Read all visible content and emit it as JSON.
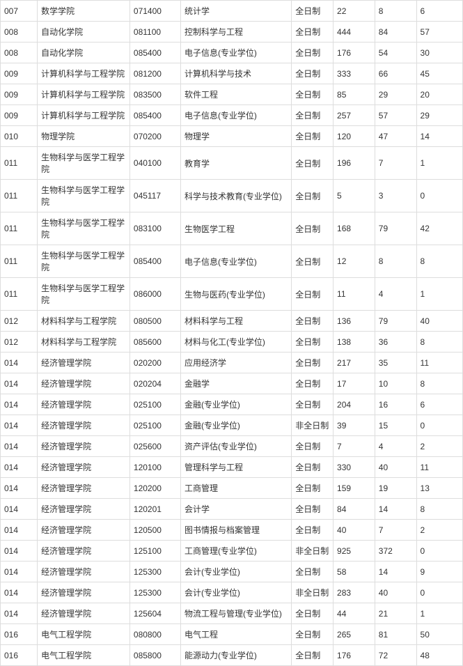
{
  "table": {
    "border_color": "#dddddd",
    "text_color": "#333333",
    "background_color": "#ffffff",
    "font_size": 12,
    "column_widths": {
      "code": "8%",
      "school": "20%",
      "major_code": "11%",
      "major": "24%",
      "mode": "9%",
      "n1": "9%",
      "n2": "9%",
      "n3": "10%"
    },
    "rows": [
      {
        "code": "007",
        "school": "数学学院",
        "major_code": "071400",
        "major": "统计学",
        "mode": "全日制",
        "n1": "22",
        "n2": "8",
        "n3": "6"
      },
      {
        "code": "008",
        "school": "自动化学院",
        "major_code": "081100",
        "major": "控制科学与工程",
        "mode": "全日制",
        "n1": "444",
        "n2": "84",
        "n3": "57"
      },
      {
        "code": "008",
        "school": "自动化学院",
        "major_code": "085400",
        "major": "电子信息(专业学位)",
        "mode": "全日制",
        "n1": "176",
        "n2": "54",
        "n3": "30"
      },
      {
        "code": "009",
        "school": "计算机科学与工程学院",
        "major_code": "081200",
        "major": "计算机科学与技术",
        "mode": "全日制",
        "n1": "333",
        "n2": "66",
        "n3": "45"
      },
      {
        "code": "009",
        "school": "计算机科学与工程学院",
        "major_code": "083500",
        "major": "软件工程",
        "mode": "全日制",
        "n1": "85",
        "n2": "29",
        "n3": "20"
      },
      {
        "code": "009",
        "school": "计算机科学与工程学院",
        "major_code": "085400",
        "major": "电子信息(专业学位)",
        "mode": "全日制",
        "n1": "257",
        "n2": "57",
        "n3": "29"
      },
      {
        "code": "010",
        "school": "物理学院",
        "major_code": "070200",
        "major": "物理学",
        "mode": "全日制",
        "n1": "120",
        "n2": "47",
        "n3": "14"
      },
      {
        "code": "011",
        "school": "生物科学与医学工程学院",
        "major_code": "040100",
        "major": "教育学",
        "mode": "全日制",
        "n1": "196",
        "n2": "7",
        "n3": "1"
      },
      {
        "code": "011",
        "school": "生物科学与医学工程学院",
        "major_code": "045117",
        "major": "科学与技术教育(专业学位)",
        "mode": "全日制",
        "n1": "5",
        "n2": "3",
        "n3": "0"
      },
      {
        "code": "011",
        "school": "生物科学与医学工程学院",
        "major_code": "083100",
        "major": "生物医学工程",
        "mode": "全日制",
        "n1": "168",
        "n2": "79",
        "n3": "42"
      },
      {
        "code": "011",
        "school": "生物科学与医学工程学院",
        "major_code": "085400",
        "major": "电子信息(专业学位)",
        "mode": "全日制",
        "n1": "12",
        "n2": "8",
        "n3": "8"
      },
      {
        "code": "011",
        "school": "生物科学与医学工程学院",
        "major_code": "086000",
        "major": "生物与医药(专业学位)",
        "mode": "全日制",
        "n1": "11",
        "n2": "4",
        "n3": "1"
      },
      {
        "code": "012",
        "school": "材料科学与工程学院",
        "major_code": "080500",
        "major": "材料科学与工程",
        "mode": "全日制",
        "n1": "136",
        "n2": "79",
        "n3": "40"
      },
      {
        "code": "012",
        "school": "材料科学与工程学院",
        "major_code": "085600",
        "major": "材料与化工(专业学位)",
        "mode": "全日制",
        "n1": "138",
        "n2": "36",
        "n3": "8"
      },
      {
        "code": "014",
        "school": "经济管理学院",
        "major_code": "020200",
        "major": "应用经济学",
        "mode": "全日制",
        "n1": "217",
        "n2": "35",
        "n3": "11"
      },
      {
        "code": "014",
        "school": "经济管理学院",
        "major_code": "020204",
        "major": "金融学",
        "mode": "全日制",
        "n1": "17",
        "n2": "10",
        "n3": "8"
      },
      {
        "code": "014",
        "school": "经济管理学院",
        "major_code": "025100",
        "major": "金融(专业学位)",
        "mode": "全日制",
        "n1": "204",
        "n2": "16",
        "n3": "6"
      },
      {
        "code": "014",
        "school": "经济管理学院",
        "major_code": "025100",
        "major": "金融(专业学位)",
        "mode": "非全日制",
        "n1": "39",
        "n2": "15",
        "n3": "0"
      },
      {
        "code": "014",
        "school": "经济管理学院",
        "major_code": "025600",
        "major": "资产评估(专业学位)",
        "mode": "全日制",
        "n1": "7",
        "n2": "4",
        "n3": "2"
      },
      {
        "code": "014",
        "school": "经济管理学院",
        "major_code": "120100",
        "major": "管理科学与工程",
        "mode": "全日制",
        "n1": "330",
        "n2": "40",
        "n3": "11"
      },
      {
        "code": "014",
        "school": "经济管理学院",
        "major_code": "120200",
        "major": "工商管理",
        "mode": "全日制",
        "n1": "159",
        "n2": "19",
        "n3": "13"
      },
      {
        "code": "014",
        "school": "经济管理学院",
        "major_code": "120201",
        "major": "会计学",
        "mode": "全日制",
        "n1": "84",
        "n2": "14",
        "n3": "8"
      },
      {
        "code": "014",
        "school": "经济管理学院",
        "major_code": "120500",
        "major": "图书情报与档案管理",
        "mode": "全日制",
        "n1": "40",
        "n2": "7",
        "n3": "2"
      },
      {
        "code": "014",
        "school": "经济管理学院",
        "major_code": "125100",
        "major": "工商管理(专业学位)",
        "mode": "非全日制",
        "n1": "925",
        "n2": "372",
        "n3": "0"
      },
      {
        "code": "014",
        "school": "经济管理学院",
        "major_code": "125300",
        "major": "会计(专业学位)",
        "mode": "全日制",
        "n1": "58",
        "n2": "14",
        "n3": "9"
      },
      {
        "code": "014",
        "school": "经济管理学院",
        "major_code": "125300",
        "major": "会计(专业学位)",
        "mode": "非全日制",
        "n1": "283",
        "n2": "40",
        "n3": "0"
      },
      {
        "code": "014",
        "school": "经济管理学院",
        "major_code": "125604",
        "major": "物流工程与管理(专业学位)",
        "mode": "全日制",
        "n1": "44",
        "n2": "21",
        "n3": "1"
      },
      {
        "code": "016",
        "school": "电气工程学院",
        "major_code": "080800",
        "major": "电气工程",
        "mode": "全日制",
        "n1": "265",
        "n2": "81",
        "n3": "50"
      },
      {
        "code": "016",
        "school": "电气工程学院",
        "major_code": "085800",
        "major": "能源动力(专业学位)",
        "mode": "全日制",
        "n1": "176",
        "n2": "72",
        "n3": "48"
      }
    ]
  }
}
